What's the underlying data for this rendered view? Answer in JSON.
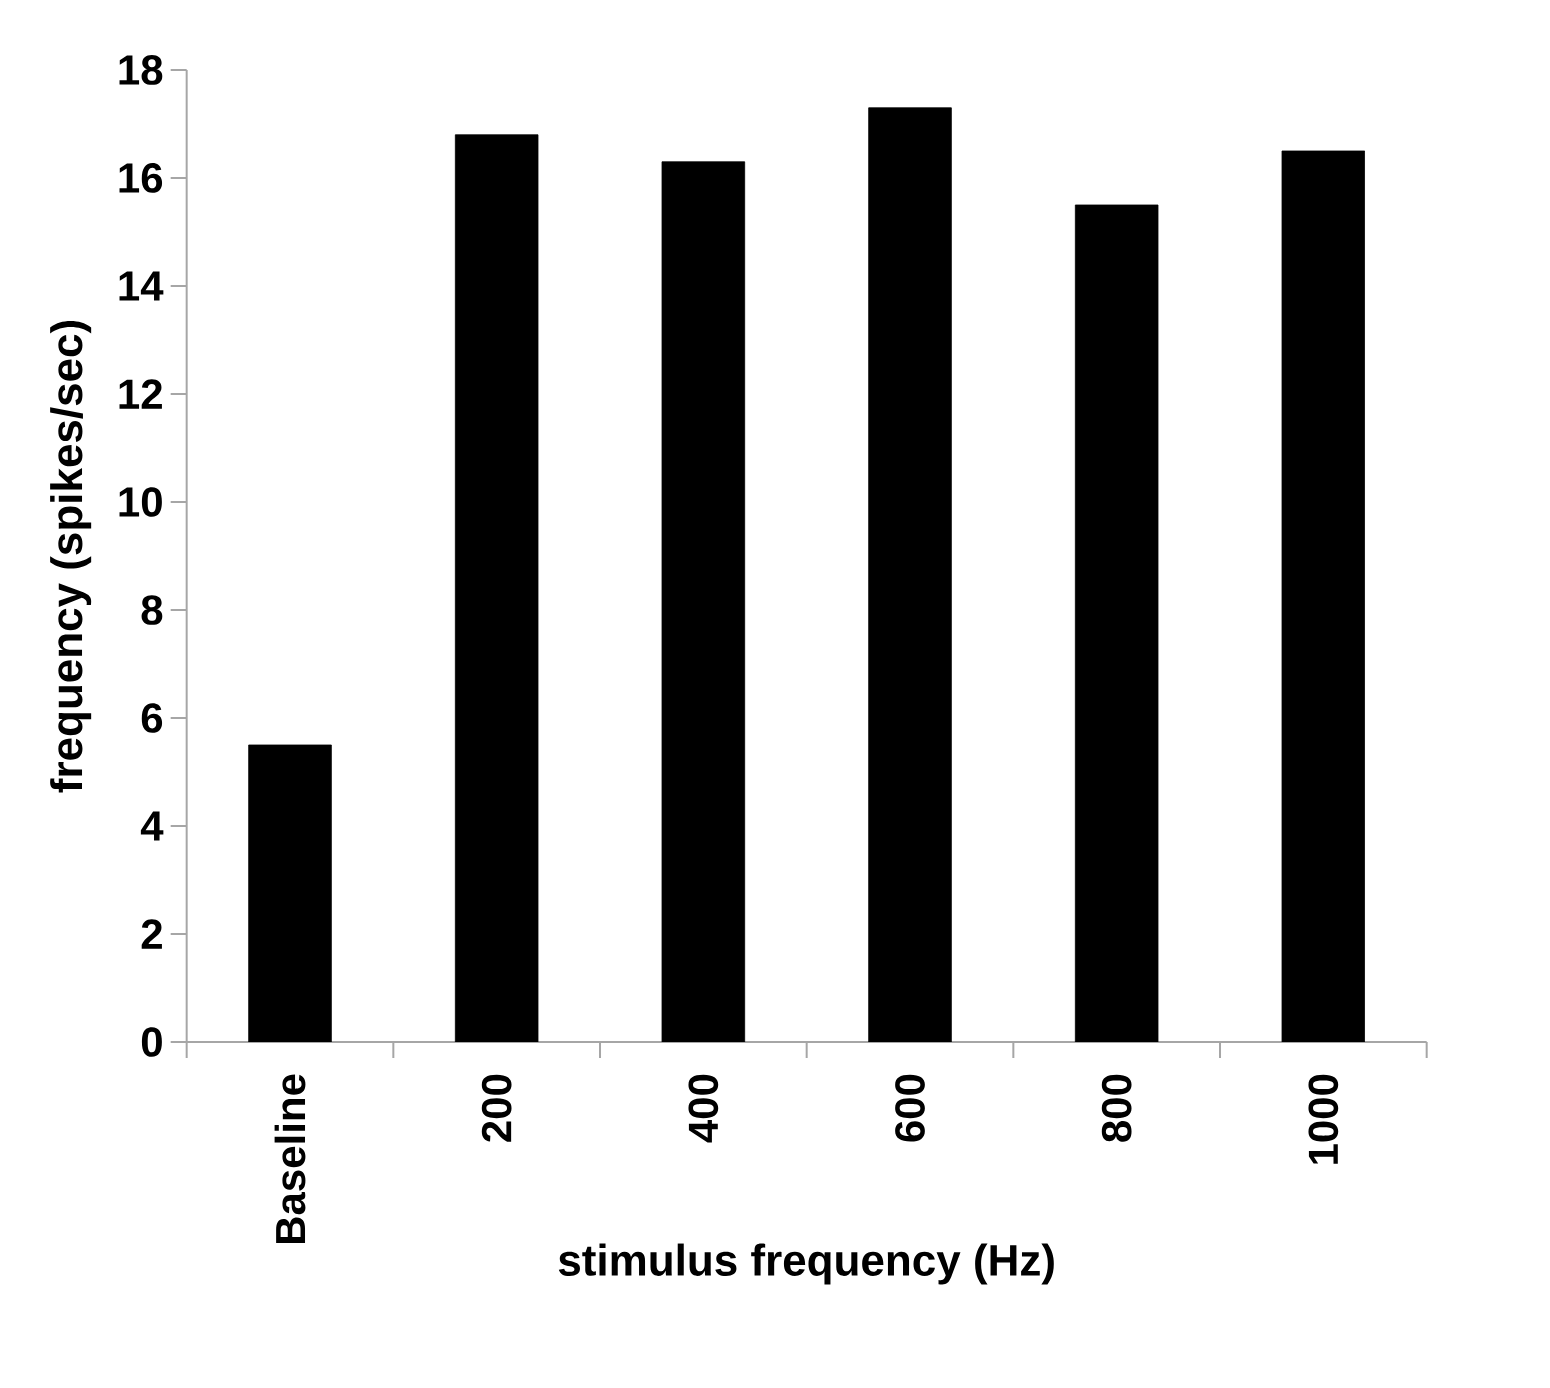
{
  "chart_data": {
    "type": "bar",
    "xlabel": "stimulus frequency (Hz)",
    "ylabel": "frequency (spikes/sec)",
    "categories": [
      "Baseline",
      "200",
      "400",
      "600",
      "800",
      "1000"
    ],
    "values": [
      5.5,
      16.8,
      16.3,
      17.3,
      15.5,
      16.5
    ],
    "color": "#000000",
    "ylim": [
      0,
      18
    ],
    "yticks": [
      0,
      2,
      4,
      6,
      8,
      10,
      12,
      14,
      16,
      18
    ],
    "grid": false
  }
}
